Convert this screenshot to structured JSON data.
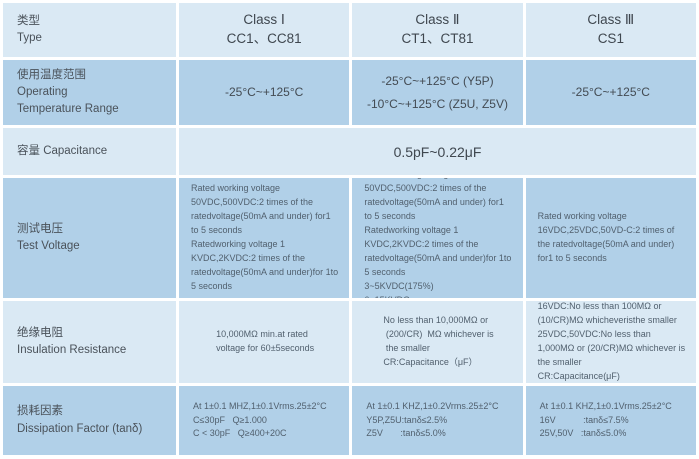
{
  "colors": {
    "row_light": "#dae9f4",
    "row_medium": "#b1d0e8",
    "gap": "#ffffff",
    "text_dark": "#3f474f",
    "text_small": "#51606e"
  },
  "table": {
    "rows": [
      {
        "id": "type",
        "label": "类型\nType",
        "cells": [
          "Class Ⅰ\nCC1、CC81",
          "Class Ⅱ\nCT1、CT81",
          "Class Ⅲ\nCS1"
        ]
      },
      {
        "id": "operating-temperature-range",
        "label": "使用温度范围\nOperating\nTemperature Range",
        "cells": [
          "-25°C~+125°C",
          "-25°C~+125°C (Y5P)\n-10°C~+125°C (Z5U, Z5V)",
          "-25°C~+125°C"
        ]
      },
      {
        "id": "capacitance",
        "label": "容量 Capacitance",
        "merged_cell": "0.5pF~0.22μF"
      },
      {
        "id": "test-voltage",
        "label": "测试电压\nTest Voltage",
        "cells": [
          "Rated working voltage 50VDC,500VDC:2 times of the ratedvoltage(50mA and under) for1 to 5 seconds\nRatedworking voltage 1 KVDC,2KVDC:2 times of the ratedvoltage(50mA and under)for 1to 5 seconds",
          "Rated working voltage 50VDC,500VDC:2 times of the ratedvoltage(50mA and under) for1 to 5 seconds\nRatedworking voltage 1 KVDC,2KVDC:2 times of the ratedvoltage(50mA and under)for 1to 5 seconds\n3~5KVDC(175%)\n6~15KVDC",
          "Rated working voltage 16VDC,25VDC,50VD-C:2 times of the ratedvoltage(50mA and under) for1 to 5 seconds"
        ]
      },
      {
        "id": "insulation-resistance",
        "label": "绝缘电阻\nInsulation Resistance",
        "cells": [
          "10,000MΩ min.at rated\nvoltage for 60±5seconds",
          "No less than 10,000MΩ or\n (200/CR)  MΩ whichever is\n the smaller\nCR:Capacitance（μF）",
          "16VDC:No less than 100MΩ or (10/CR)MΩ whicheveristhe smaller\n25VDC,50VDC:No less than 1,000MΩ or (20/CR)MΩ whichever is the smaller\nCR:Capacitance(μF)"
        ]
      },
      {
        "id": "dissipation-factor",
        "label": "损耗因素\nDissipation Factor (tanδ)",
        "cells": [
          "At 1±0.1 MHZ,1±0.1Vrms.25±2°C\nC≤30pF   Q≥1.000\nC < 30pF   Q≥400+20C",
          "At 1±0.1 KHZ,1±0.2Vrms.25±2°C\nY5P,Z5U:tanδ≤2.5%\nZ5V       :tanδ≤5.0%",
          "At 1±0.1 KHZ,1±0.1Vrms.25±2°C\n16V           :tanδ≤7.5%\n25V,50V   :tanδ≤5.0%"
        ]
      }
    ]
  }
}
